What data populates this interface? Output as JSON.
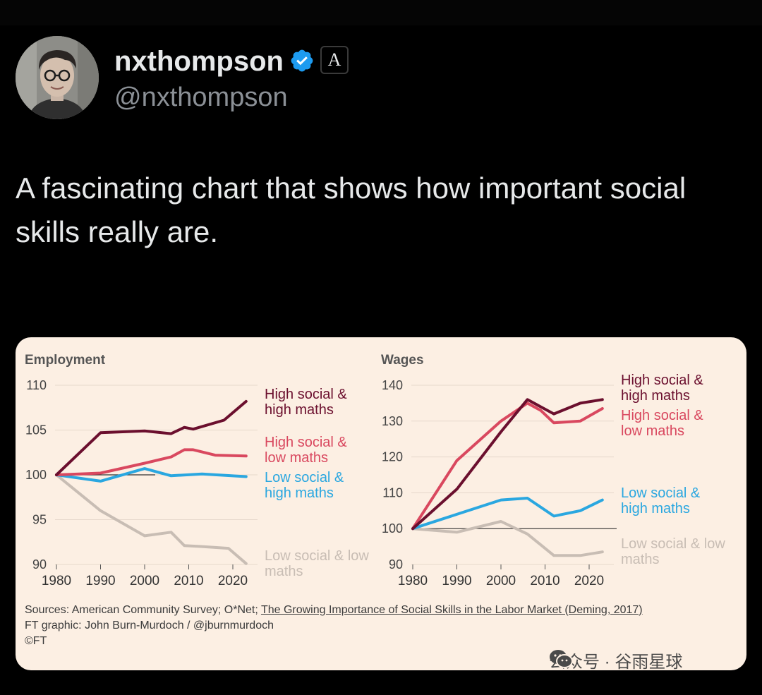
{
  "tweet": {
    "display_name": "nxthompson",
    "handle": "@nxthompson",
    "affiliate_badge": "A",
    "text": "A fascinating chart that shows how important social skills really are."
  },
  "icons": {
    "avatar": "profile-photo",
    "verified": "verified-badge-icon",
    "affiliate": "publication-affiliate-badge",
    "watermark": "wechat-icon"
  },
  "colors": {
    "background": "#000000",
    "chart_background": "#fcefe3",
    "verified": "#1d9bf0",
    "high_social_high_maths": "#6b0f2e",
    "high_social_low_maths": "#d9485f",
    "low_social_high_maths": "#2aa7e0",
    "low_social_low_maths": "#c8bdb4"
  },
  "chart_data": [
    {
      "type": "line",
      "title": "Employment",
      "ylim": [
        90,
        110
      ],
      "yticks": [
        "110",
        "105",
        "100",
        "95",
        "90"
      ],
      "xlim": [
        1980,
        2024
      ],
      "xticks": [
        "1980",
        "1990",
        "2000",
        "2010",
        "2020"
      ],
      "baseline": 100,
      "series": [
        {
          "name": "High social & high maths",
          "label_lines": [
            "High social &",
            "high maths"
          ],
          "color": "#6b0f2e",
          "x": [
            1980,
            1990,
            2000,
            2006,
            2009,
            2011,
            2018,
            2023
          ],
          "values": [
            100,
            104.7,
            104.9,
            104.6,
            105.3,
            105.1,
            106.1,
            108.2
          ]
        },
        {
          "name": "High social & low maths",
          "label_lines": [
            "High social &",
            "low maths"
          ],
          "color": "#d9485f",
          "x": [
            1980,
            1990,
            2000,
            2006,
            2009,
            2011,
            2016,
            2023
          ],
          "values": [
            100,
            100.2,
            101.3,
            102.0,
            102.8,
            102.8,
            102.2,
            102.1
          ]
        },
        {
          "name": "Low social & high maths",
          "label_lines": [
            "Low social &",
            "high maths"
          ],
          "color": "#2aa7e0",
          "x": [
            1980,
            1990,
            2000,
            2006,
            2013,
            2023
          ],
          "values": [
            100,
            99.3,
            100.7,
            99.9,
            100.1,
            99.8
          ]
        },
        {
          "name": "Low social & low maths",
          "label_lines": [
            "Low social & low",
            "maths"
          ],
          "color": "#c8bdb4",
          "x": [
            1980,
            1990,
            2000,
            2006,
            2009,
            2013,
            2019,
            2023
          ],
          "values": [
            100,
            96.0,
            93.2,
            93.6,
            92.1,
            92.0,
            91.8,
            90.1
          ]
        }
      ]
    },
    {
      "type": "line",
      "title": "Wages",
      "ylim": [
        90,
        140
      ],
      "yticks": [
        "140",
        "130",
        "120",
        "110",
        "100",
        "90"
      ],
      "xlim": [
        1980,
        2024
      ],
      "xticks": [
        "1980",
        "1990",
        "2000",
        "2010",
        "2020"
      ],
      "baseline": 100,
      "series": [
        {
          "name": "High social & high maths",
          "label_lines": [
            "High social &",
            "high maths"
          ],
          "color": "#6b0f2e",
          "x": [
            1980,
            1990,
            2000,
            2006,
            2009,
            2012,
            2018,
            2023
          ],
          "values": [
            100,
            111,
            127,
            136,
            134,
            132,
            135,
            136
          ]
        },
        {
          "name": "High social & low maths",
          "label_lines": [
            "High social &",
            "low maths"
          ],
          "color": "#d9485f",
          "x": [
            1980,
            1990,
            2000,
            2006,
            2009,
            2012,
            2018,
            2023
          ],
          "values": [
            100,
            119,
            130,
            135,
            133,
            129.5,
            130,
            133.5
          ]
        },
        {
          "name": "Low social & high maths",
          "label_lines": [
            "Low social &",
            "high maths"
          ],
          "color": "#2aa7e0",
          "x": [
            1980,
            1990,
            2000,
            2006,
            2012,
            2018,
            2023
          ],
          "values": [
            100,
            104,
            108,
            108.5,
            103.5,
            105,
            108
          ]
        },
        {
          "name": "Low social & low maths",
          "label_lines": [
            "Low social & low",
            "maths"
          ],
          "color": "#c8bdb4",
          "x": [
            1980,
            1990,
            2000,
            2006,
            2012,
            2018,
            2023
          ],
          "values": [
            100,
            99,
            102,
            98.5,
            92.5,
            92.5,
            93.5
          ]
        }
      ]
    }
  ],
  "sources": {
    "line1_prefix": "Sources: American Community Survey; O*Net; ",
    "line1_link": "The Growing Importance of Social Skills in the Labor Market (Deming, 2017)",
    "line2": "FT graphic: John Burn-Murdoch / @jburnmurdoch",
    "line3": "©FT"
  },
  "watermark": {
    "text": "公众号 · 谷雨星球"
  }
}
